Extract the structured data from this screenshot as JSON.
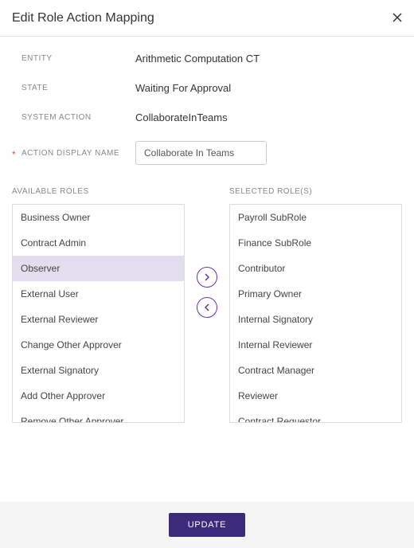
{
  "header": {
    "title": "Edit Role Action Mapping"
  },
  "form": {
    "entity_label": "ENTITY",
    "entity_value": "Arithmetic Computation CT",
    "state_label": "STATE",
    "state_value": "Waiting For Approval",
    "system_action_label": "SYSTEM ACTION",
    "system_action_value": "CollaborateInTeams",
    "display_name_label": "ACTION DISPLAY NAME",
    "display_name_value": "Collaborate In Teams"
  },
  "roles": {
    "available_header": "AVAILABLE ROLES",
    "selected_header": "SELECTED ROLE(S)",
    "available": [
      "Business Owner",
      "Contract Admin",
      "Observer",
      "External User",
      "External Reviewer",
      "Change Other Approver",
      "External Signatory",
      "Add Other Approver",
      "Remove Other Approver"
    ],
    "selected": [
      "Payroll SubRole",
      "Finance SubRole",
      "Contributor",
      "Primary Owner",
      "Internal Signatory",
      "Internal Reviewer",
      "Contract Manager",
      "Reviewer",
      "Contract Requestor"
    ],
    "highlighted_available_index": 2
  },
  "footer": {
    "update_label": "UPDATE"
  },
  "colors": {
    "accent": "#5e35b1",
    "button_bg": "#3c2b7a",
    "highlight": "#e3deee"
  }
}
